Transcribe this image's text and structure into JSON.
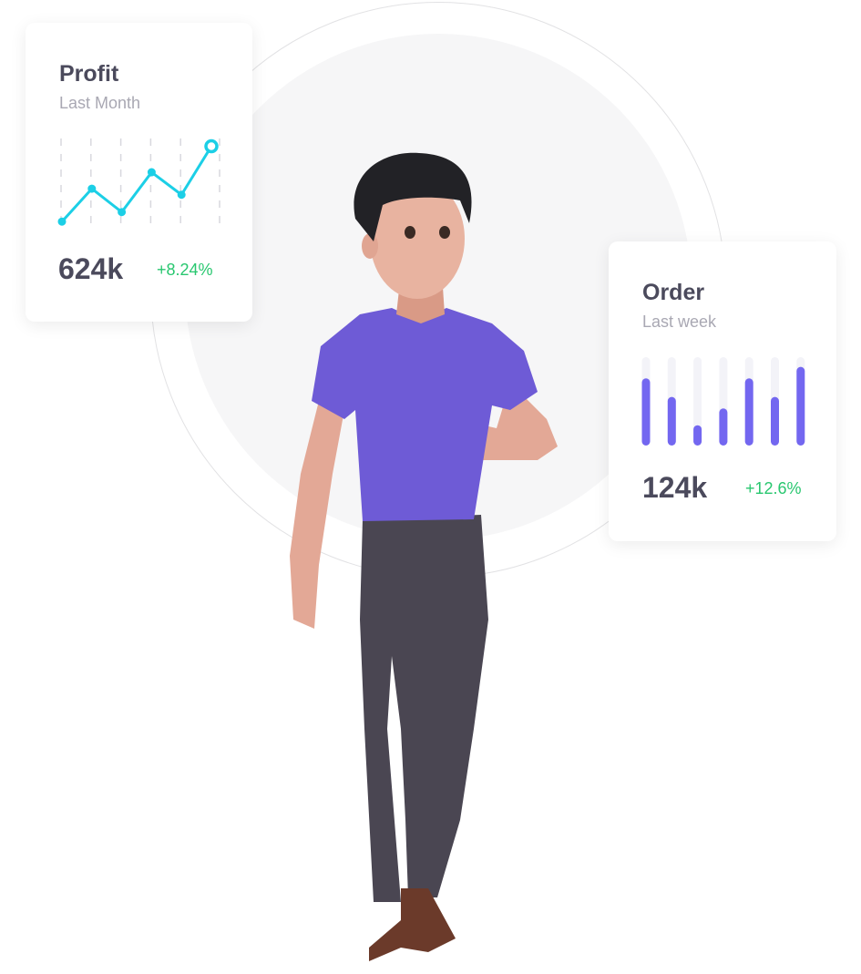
{
  "profit_card": {
    "title": "Profit",
    "subtitle": "Last Month",
    "value": "624k",
    "change": "+8.24%"
  },
  "order_card": {
    "title": "Order",
    "subtitle": "Last week",
    "value": "124k",
    "change": "+12.6%"
  },
  "chart_data": [
    {
      "type": "line",
      "values": [
        4,
        42,
        15,
        61,
        35,
        91
      ],
      "ylim": [
        0,
        100
      ],
      "grid": "vertical dashed",
      "color": "#1ccfe6"
    },
    {
      "type": "bar",
      "values": [
        76,
        55,
        23,
        42,
        76,
        55,
        89
      ],
      "ylim": [
        0,
        100
      ],
      "color": "#7367f0",
      "track_color": "#f3f3f8"
    }
  ],
  "colors": {
    "title": "#4b4a5c",
    "subtitle": "#a9a8b3",
    "positive": "#28c76f",
    "shirt": "#6e5bd6",
    "pants": "#4a4652"
  }
}
